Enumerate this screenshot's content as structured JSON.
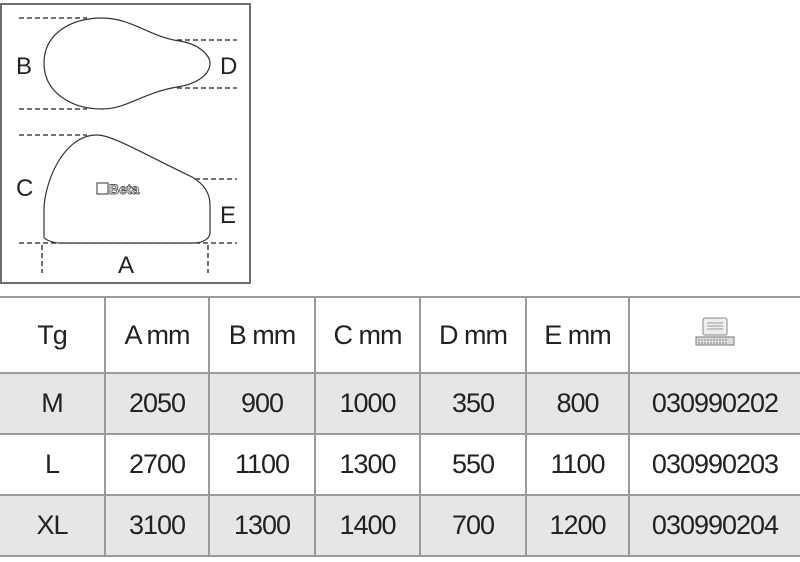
{
  "diagram": {
    "labels": {
      "a": "A",
      "b": "B",
      "c": "C",
      "d": "D",
      "e": "E"
    },
    "logo_text": "Beta"
  },
  "table": {
    "headers": [
      "Tg",
      "A mm",
      "B mm",
      "C mm",
      "D mm",
      "E mm"
    ],
    "code_header_icon": "computer-icon",
    "rows": [
      {
        "tg": "M",
        "a": "2050",
        "b": "900",
        "c": "1000",
        "d": "350",
        "e": "800",
        "code": "030990202"
      },
      {
        "tg": "L",
        "a": "2700",
        "b": "1100",
        "c": "1300",
        "d": "550",
        "e": "1100",
        "code": "030990203"
      },
      {
        "tg": "XL",
        "a": "3100",
        "b": "1300",
        "c": "1400",
        "d": "700",
        "e": "1200",
        "code": "030990204"
      }
    ]
  }
}
